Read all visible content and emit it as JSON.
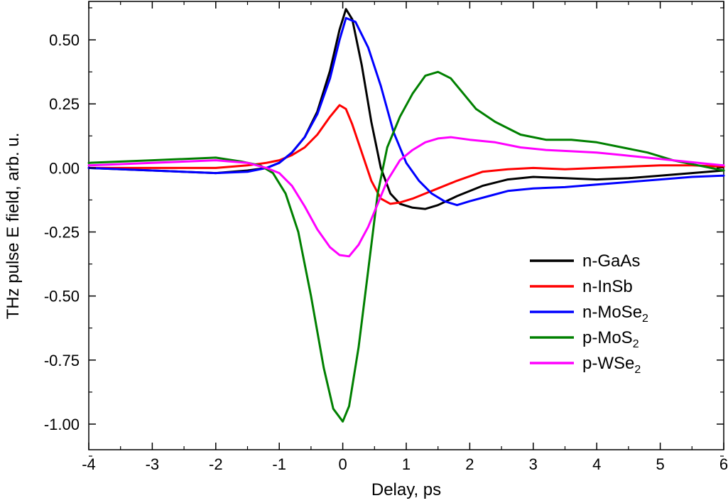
{
  "chart_data": {
    "type": "line",
    "xlabel": "Delay, ps",
    "ylabel": "THz pulse E field, arb. u.",
    "xlim": [
      -4,
      6
    ],
    "ylim": [
      -1.1,
      0.65
    ],
    "x_ticks": [
      "-4",
      "-3",
      "-2",
      "-1",
      "0",
      "1",
      "2",
      "3",
      "4",
      "5",
      "6"
    ],
    "y_ticks": [
      "0.50",
      "0.25",
      "0.00",
      "-0.25",
      "-0.50",
      "-0.75",
      "-1.00"
    ],
    "x_tick_values": [
      -4,
      -3,
      -2,
      -1,
      0,
      1,
      2,
      3,
      4,
      5,
      6
    ],
    "y_tick_values": [
      0.5,
      0.25,
      0,
      -0.25,
      -0.5,
      -0.75,
      -1.0
    ],
    "grid": false,
    "legend_position": "bottom-right",
    "series": [
      {
        "name": "n-GaAs",
        "name_main": "n-GaAs",
        "name_sub": "",
        "color": "#000000",
        "points": [
          [
            -4,
            0.0
          ],
          [
            -3,
            -0.01
          ],
          [
            -2,
            -0.02
          ],
          [
            -1.5,
            -0.01
          ],
          [
            -1.2,
            0.0
          ],
          [
            -1.0,
            0.02
          ],
          [
            -0.8,
            0.06
          ],
          [
            -0.6,
            0.12
          ],
          [
            -0.4,
            0.22
          ],
          [
            -0.2,
            0.38
          ],
          [
            -0.05,
            0.54
          ],
          [
            0.05,
            0.62
          ],
          [
            0.15,
            0.58
          ],
          [
            0.3,
            0.4
          ],
          [
            0.45,
            0.18
          ],
          [
            0.6,
            0.0
          ],
          [
            0.75,
            -0.1
          ],
          [
            0.9,
            -0.14
          ],
          [
            1.1,
            -0.155
          ],
          [
            1.3,
            -0.16
          ],
          [
            1.5,
            -0.145
          ],
          [
            1.8,
            -0.11
          ],
          [
            2.2,
            -0.07
          ],
          [
            2.6,
            -0.045
          ],
          [
            3.0,
            -0.035
          ],
          [
            3.5,
            -0.04
          ],
          [
            4.0,
            -0.045
          ],
          [
            4.5,
            -0.04
          ],
          [
            5.0,
            -0.03
          ],
          [
            5.5,
            -0.02
          ],
          [
            6.0,
            -0.01
          ]
        ]
      },
      {
        "name": "n-InSb",
        "name_main": "n-InSb",
        "name_sub": "",
        "color": "#ff0000",
        "points": [
          [
            -4,
            0.0
          ],
          [
            -3,
            0.0
          ],
          [
            -2,
            0.0
          ],
          [
            -1.5,
            0.01
          ],
          [
            -1.2,
            0.02
          ],
          [
            -1.0,
            0.03
          ],
          [
            -0.8,
            0.05
          ],
          [
            -0.6,
            0.08
          ],
          [
            -0.4,
            0.13
          ],
          [
            -0.2,
            0.2
          ],
          [
            -0.05,
            0.245
          ],
          [
            0.05,
            0.23
          ],
          [
            0.15,
            0.17
          ],
          [
            0.3,
            0.06
          ],
          [
            0.45,
            -0.05
          ],
          [
            0.6,
            -0.12
          ],
          [
            0.75,
            -0.14
          ],
          [
            0.9,
            -0.135
          ],
          [
            1.1,
            -0.12
          ],
          [
            1.3,
            -0.1
          ],
          [
            1.5,
            -0.08
          ],
          [
            1.8,
            -0.05
          ],
          [
            2.2,
            -0.015
          ],
          [
            2.6,
            -0.005
          ],
          [
            3.0,
            0.0
          ],
          [
            3.5,
            -0.005
          ],
          [
            4.0,
            0.0
          ],
          [
            4.5,
            0.005
          ],
          [
            5.0,
            0.01
          ],
          [
            5.5,
            0.01
          ],
          [
            6.0,
            0.005
          ]
        ]
      },
      {
        "name": "n-MoSe2",
        "name_main": "n-MoSe",
        "name_sub": "2",
        "color": "#0000ff",
        "points": [
          [
            -4,
            0.0
          ],
          [
            -3,
            -0.01
          ],
          [
            -2,
            -0.02
          ],
          [
            -1.5,
            -0.015
          ],
          [
            -1.2,
            0.0
          ],
          [
            -1.0,
            0.02
          ],
          [
            -0.8,
            0.06
          ],
          [
            -0.6,
            0.12
          ],
          [
            -0.4,
            0.21
          ],
          [
            -0.2,
            0.35
          ],
          [
            -0.05,
            0.5
          ],
          [
            0.05,
            0.585
          ],
          [
            0.2,
            0.57
          ],
          [
            0.4,
            0.47
          ],
          [
            0.6,
            0.32
          ],
          [
            0.8,
            0.14
          ],
          [
            1.0,
            0.02
          ],
          [
            1.2,
            -0.05
          ],
          [
            1.4,
            -0.1
          ],
          [
            1.6,
            -0.13
          ],
          [
            1.8,
            -0.145
          ],
          [
            2.0,
            -0.13
          ],
          [
            2.3,
            -0.11
          ],
          [
            2.6,
            -0.09
          ],
          [
            3.0,
            -0.08
          ],
          [
            3.5,
            -0.075
          ],
          [
            4.0,
            -0.065
          ],
          [
            4.5,
            -0.055
          ],
          [
            5.0,
            -0.045
          ],
          [
            5.5,
            -0.035
          ],
          [
            6.0,
            -0.03
          ]
        ]
      },
      {
        "name": "p-MoS2",
        "name_main": "p-MoS",
        "name_sub": "2",
        "color": "#008000",
        "points": [
          [
            -4,
            0.02
          ],
          [
            -3,
            0.03
          ],
          [
            -2,
            0.04
          ],
          [
            -1.6,
            0.025
          ],
          [
            -1.3,
            0.01
          ],
          [
            -1.1,
            -0.02
          ],
          [
            -0.9,
            -0.1
          ],
          [
            -0.7,
            -0.25
          ],
          [
            -0.5,
            -0.5
          ],
          [
            -0.3,
            -0.78
          ],
          [
            -0.15,
            -0.94
          ],
          [
            0.0,
            -0.99
          ],
          [
            0.1,
            -0.93
          ],
          [
            0.25,
            -0.7
          ],
          [
            0.4,
            -0.4
          ],
          [
            0.55,
            -0.1
          ],
          [
            0.7,
            0.08
          ],
          [
            0.9,
            0.2
          ],
          [
            1.1,
            0.29
          ],
          [
            1.3,
            0.36
          ],
          [
            1.5,
            0.375
          ],
          [
            1.7,
            0.35
          ],
          [
            1.9,
            0.29
          ],
          [
            2.1,
            0.23
          ],
          [
            2.4,
            0.18
          ],
          [
            2.8,
            0.13
          ],
          [
            3.2,
            0.11
          ],
          [
            3.6,
            0.11
          ],
          [
            4.0,
            0.1
          ],
          [
            4.4,
            0.08
          ],
          [
            4.8,
            0.06
          ],
          [
            5.2,
            0.03
          ],
          [
            5.6,
            0.01
          ],
          [
            6.0,
            -0.01
          ]
        ]
      },
      {
        "name": "p-WSe2",
        "name_main": "p-WSe",
        "name_sub": "2",
        "color": "#ff00ff",
        "points": [
          [
            -4,
            0.01
          ],
          [
            -3,
            0.02
          ],
          [
            -2,
            0.03
          ],
          [
            -1.5,
            0.02
          ],
          [
            -1.2,
            0.0
          ],
          [
            -1.0,
            -0.02
          ],
          [
            -0.8,
            -0.07
          ],
          [
            -0.6,
            -0.15
          ],
          [
            -0.4,
            -0.24
          ],
          [
            -0.2,
            -0.31
          ],
          [
            -0.05,
            -0.34
          ],
          [
            0.1,
            -0.345
          ],
          [
            0.25,
            -0.3
          ],
          [
            0.4,
            -0.23
          ],
          [
            0.55,
            -0.14
          ],
          [
            0.7,
            -0.05
          ],
          [
            0.9,
            0.03
          ],
          [
            1.1,
            0.07
          ],
          [
            1.3,
            0.1
          ],
          [
            1.5,
            0.115
          ],
          [
            1.7,
            0.12
          ],
          [
            2.0,
            0.11
          ],
          [
            2.4,
            0.1
          ],
          [
            2.8,
            0.08
          ],
          [
            3.2,
            0.07
          ],
          [
            3.6,
            0.065
          ],
          [
            4.0,
            0.06
          ],
          [
            4.4,
            0.05
          ],
          [
            4.8,
            0.04
          ],
          [
            5.2,
            0.03
          ],
          [
            5.6,
            0.02
          ],
          [
            6.0,
            0.01
          ]
        ]
      }
    ]
  }
}
